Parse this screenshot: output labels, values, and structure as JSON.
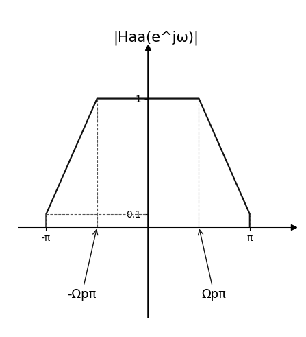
{
  "chart_data": {
    "type": "line",
    "title": "|Haa(e^jω)|",
    "x": [
      -3.14159,
      -3.14159,
      -1.5708,
      1.5708,
      3.14159,
      3.14159
    ],
    "values": [
      0,
      0.1,
      1,
      1,
      0.1,
      0
    ],
    "color": "#111111",
    "xlim": [
      -4,
      4.5
    ],
    "ylim": [
      -0.7,
      1.4
    ],
    "xticks": [
      {
        "value": -3.14159,
        "label": "-π"
      },
      {
        "value": 3.14159,
        "label": "π"
      }
    ],
    "yticks": [
      0.1,
      1
    ],
    "annotations": [
      {
        "text": "-Ωpπ",
        "x": -1.5708
      },
      {
        "text": "Ωpπ",
        "x": 1.5708
      }
    ],
    "grid": false
  }
}
